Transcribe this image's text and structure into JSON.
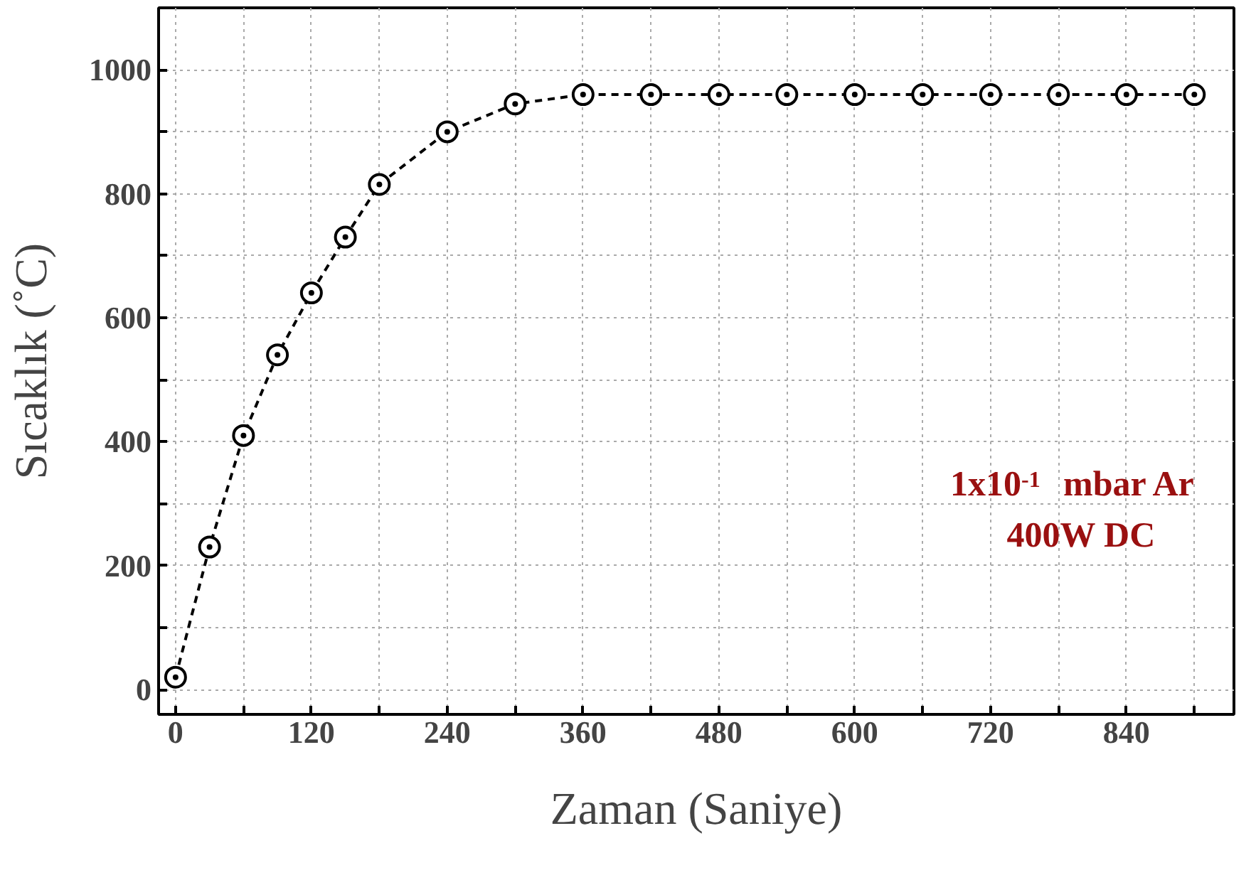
{
  "chart_data": {
    "type": "line",
    "xlabel": "Zaman (Saniye)",
    "ylabel": "Sıcaklık (˚C)",
    "x": [
      0,
      30,
      60,
      90,
      120,
      150,
      180,
      240,
      300,
      360,
      420,
      480,
      540,
      600,
      660,
      720,
      780,
      840,
      900
    ],
    "series": [
      {
        "color": "#000000",
        "values": [
          20,
          230,
          410,
          540,
          640,
          730,
          815,
          900,
          945,
          960,
          960,
          960,
          960,
          960,
          960,
          960,
          960,
          960,
          960
        ]
      }
    ],
    "xlim": [
      -15,
      935
    ],
    "ylim": [
      -40,
      1100
    ],
    "xticks": [
      0,
      {
        "value": 60,
        "label": null
      },
      120,
      {
        "value": 180,
        "label": null
      },
      240,
      {
        "value": 300,
        "label": null
      },
      360,
      {
        "value": 420,
        "label": null
      },
      480,
      {
        "value": 540,
        "label": null
      },
      600,
      {
        "value": 660,
        "label": null
      },
      720,
      {
        "value": 780,
        "label": null
      },
      840,
      {
        "value": 900,
        "label": null
      }
    ],
    "yticks": [
      0,
      {
        "value": 100,
        "label": null
      },
      200,
      {
        "value": 300,
        "label": null
      },
      400,
      {
        "value": 500,
        "label": null
      },
      600,
      {
        "value": 700,
        "label": null
      },
      800,
      {
        "value": 900,
        "label": null
      },
      1000
    ],
    "grid": true,
    "marker": "circle",
    "line_style": "dashed",
    "annotations": [
      "1x10$^{-1}$ mbar Ar",
      "400W DC"
    ]
  }
}
